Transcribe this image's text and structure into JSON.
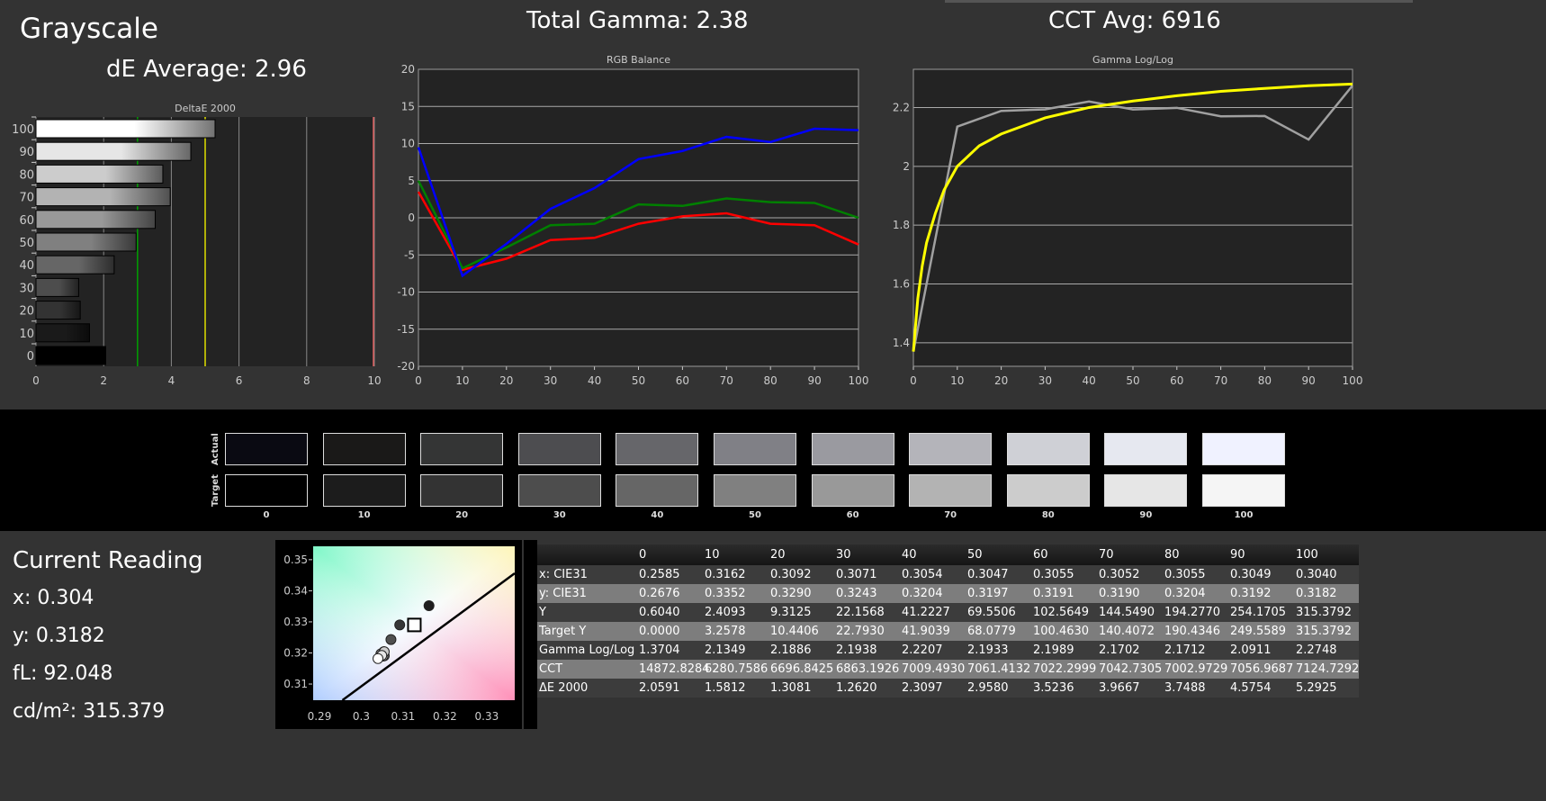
{
  "header": {
    "title": "Grayscale",
    "de_average": "dE Average: 2.96",
    "total_gamma": "Total Gamma: 2.38",
    "cct_avg": "CCT Avg: 6916"
  },
  "chart_data": [
    {
      "type": "bar",
      "title": "DeltaE 2000",
      "orientation": "horizontal",
      "categories": [
        "0",
        "10",
        "20",
        "30",
        "40",
        "50",
        "60",
        "70",
        "80",
        "90",
        "100"
      ],
      "values": [
        2.0591,
        1.5812,
        1.3081,
        1.262,
        2.3097,
        2.958,
        3.5236,
        3.9667,
        3.7488,
        4.5754,
        5.2925
      ],
      "xlim": [
        0,
        10
      ],
      "xticks": [
        "0",
        "2",
        "4",
        "6",
        "8",
        "10"
      ],
      "reference_lines": [
        {
          "value": 3,
          "color": "#00a000"
        },
        {
          "value": 5,
          "color": "#e0e000"
        },
        {
          "value": 10,
          "color": "#e06060"
        }
      ],
      "grid": true
    },
    {
      "type": "line",
      "title": "RGB Balance",
      "x": [
        0,
        10,
        20,
        30,
        40,
        50,
        60,
        70,
        80,
        90,
        100
      ],
      "xlim": [
        0,
        100
      ],
      "ylim": [
        -20,
        20
      ],
      "xticks": [
        "0",
        "10",
        "20",
        "30",
        "40",
        "50",
        "60",
        "70",
        "80",
        "90",
        "100"
      ],
      "yticks": [
        "-20",
        "-15",
        "-10",
        "-5",
        "0",
        "5",
        "10",
        "15",
        "20"
      ],
      "grid": true,
      "series": [
        {
          "color": "#ff0000",
          "values": [
            3.5,
            -7,
            -5.5,
            -3,
            -2.7,
            -0.8,
            0.2,
            0.6,
            -0.8,
            -1,
            -3.6
          ]
        },
        {
          "color": "#008000",
          "values": [
            5,
            -6.8,
            -4,
            -1,
            -0.8,
            1.8,
            1.6,
            2.6,
            2.1,
            2,
            0
          ]
        },
        {
          "color": "#0000ff",
          "values": [
            9.5,
            -7.8,
            -3.5,
            1.2,
            4,
            7.9,
            9,
            10.9,
            10.2,
            12,
            11.8
          ]
        }
      ]
    },
    {
      "type": "line",
      "title": "Gamma Log/Log",
      "xlim": [
        0,
        100
      ],
      "ylim": [
        1.32,
        2.33
      ],
      "xticks": [
        "0",
        "10",
        "20",
        "30",
        "40",
        "50",
        "60",
        "70",
        "80",
        "90",
        "100"
      ],
      "yticks": [
        "1.4",
        "1.6",
        "1.8",
        "2",
        "2.2"
      ],
      "grid": true,
      "series": [
        {
          "color": "#a0a0a0",
          "x": [
            0,
            10,
            20,
            30,
            40,
            50,
            60,
            70,
            80,
            90,
            100
          ],
          "values": [
            1.3704,
            2.1349,
            2.1886,
            2.1938,
            2.2207,
            2.1933,
            2.1989,
            2.1702,
            2.1712,
            2.0911,
            2.2748
          ]
        },
        {
          "color": "#ffff00",
          "x": [
            0,
            1,
            2,
            3,
            5,
            7,
            10,
            15,
            20,
            30,
            40,
            50,
            60,
            70,
            80,
            90,
            100
          ],
          "values": [
            1.37,
            1.55,
            1.66,
            1.74,
            1.84,
            1.92,
            2.0,
            2.07,
            2.11,
            2.165,
            2.2,
            2.222,
            2.24,
            2.255,
            2.265,
            2.274,
            2.28
          ]
        }
      ]
    },
    {
      "type": "scatter",
      "title": "",
      "xlim": [
        0.2885,
        0.3367
      ],
      "ylim": [
        0.3048,
        0.3543
      ],
      "xticks": [
        "0.29",
        "0.3",
        "0.31",
        "0.32",
        "0.33"
      ],
      "yticks": [
        "0.31",
        "0.32",
        "0.33",
        "0.34",
        "0.35"
      ],
      "points": [
        {
          "x": 0.3162,
          "y": 0.3352
        },
        {
          "x": 0.3092,
          "y": 0.329
        },
        {
          "x": 0.3071,
          "y": 0.3243
        },
        {
          "x": 0.3054,
          "y": 0.3204
        },
        {
          "x": 0.3047,
          "y": 0.3197
        },
        {
          "x": 0.3055,
          "y": 0.3191
        },
        {
          "x": 0.3052,
          "y": 0.319
        },
        {
          "x": 0.3055,
          "y": 0.3204
        },
        {
          "x": 0.3049,
          "y": 0.3192
        },
        {
          "x": 0.304,
          "y": 0.3182
        }
      ],
      "target": {
        "x": 0.3127,
        "y": 0.329
      },
      "locus": [
        [
          0.2955,
          0.3048
        ],
        [
          0.3367,
          0.3456
        ]
      ]
    }
  ],
  "swatches": {
    "actual_label": "Actual",
    "target_label": "Target",
    "labels": [
      "0",
      "10",
      "20",
      "30",
      "40",
      "50",
      "60",
      "70",
      "80",
      "90",
      "100"
    ],
    "actual": [
      "#0a0a12",
      "#1a1918",
      "#343535",
      "#4d4d50",
      "#66666a",
      "#808086",
      "#9a9aa0",
      "#b4b4ba",
      "#cfd0d6",
      "#e6e8f0",
      "#f0f2ff"
    ],
    "target": [
      "#000000",
      "#1c1c1c",
      "#333333",
      "#4d4d4d",
      "#666666",
      "#808080",
      "#999999",
      "#b3b3b3",
      "#cccccc",
      "#e6e6e6",
      "#f5f5f5"
    ]
  },
  "current": {
    "title": "Current Reading",
    "x": "x: 0.304",
    "y": "y: 0.3182",
    "fl": "fL: 92.048",
    "cdm2": "cd/m²: 315.379"
  },
  "table": {
    "headers": [
      "",
      "0",
      "10",
      "20",
      "30",
      "40",
      "50",
      "60",
      "70",
      "80",
      "90",
      "100"
    ],
    "rows": [
      [
        "x: CIE31",
        "0.2585",
        "0.3162",
        "0.3092",
        "0.3071",
        "0.3054",
        "0.3047",
        "0.3055",
        "0.3052",
        "0.3055",
        "0.3049",
        "0.3040"
      ],
      [
        "y: CIE31",
        "0.2676",
        "0.3352",
        "0.3290",
        "0.3243",
        "0.3204",
        "0.3197",
        "0.3191",
        "0.3190",
        "0.3204",
        "0.3192",
        "0.3182"
      ],
      [
        "Y",
        "0.6040",
        "2.4093",
        "9.3125",
        "22.1568",
        "41.2227",
        "69.5506",
        "102.5649",
        "144.5490",
        "194.2770",
        "254.1705",
        "315.3792"
      ],
      [
        "Target Y",
        "0.0000",
        "3.2578",
        "10.4406",
        "22.7930",
        "41.9039",
        "68.0779",
        "100.4630",
        "140.4072",
        "190.4346",
        "249.5589",
        "315.3792"
      ],
      [
        "Gamma Log/Log",
        "1.3704",
        "2.1349",
        "2.1886",
        "2.1938",
        "2.2207",
        "2.1933",
        "2.1989",
        "2.1702",
        "2.1712",
        "2.0911",
        "2.2748"
      ],
      [
        "CCT",
        "14872.8284",
        "6280.7586",
        "6696.8425",
        "6863.1926",
        "7009.4930",
        "7061.4132",
        "7022.2999",
        "7042.7305",
        "7002.9729",
        "7056.9687",
        "7124.7292"
      ],
      [
        "ΔE 2000",
        "2.0591",
        "1.5812",
        "1.3081",
        "1.2620",
        "2.3097",
        "2.9580",
        "3.5236",
        "3.9667",
        "3.7488",
        "4.5754",
        "5.2925"
      ]
    ]
  }
}
